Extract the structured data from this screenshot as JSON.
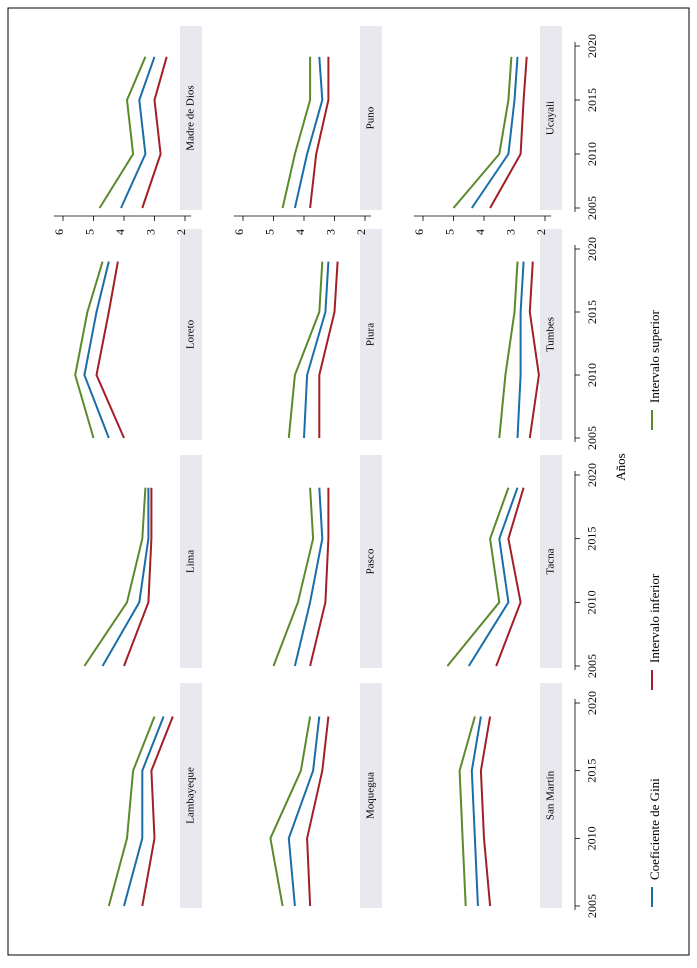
{
  "chart_data": {
    "type": "line",
    "xlabel": "Años",
    "ylabel": "",
    "xlim": [
      2004.6,
      2020
    ],
    "ylim": [
      2,
      6.5
    ],
    "xticks": [
      2005,
      2010,
      2015,
      2020
    ],
    "yticks": [
      2,
      3,
      4,
      5,
      6
    ],
    "x": [
      2005,
      2010,
      2015,
      2019
    ],
    "colors": {
      "Coeficiente de Gini": "#1a6ea8",
      "Intervalo inferior": "#a31f25",
      "Intervalo superior": "#5a8a2b"
    },
    "legend": {
      "position": "bottom",
      "entries": [
        "Coeficiente de Gini",
        "Intervalo inferior",
        "Intervalo superior"
      ]
    },
    "panels": [
      {
        "name": "Lambayeque",
        "series": [
          {
            "name": "Coeficiente de Gini",
            "values": [
              4.0,
              3.4,
              3.4,
              2.7
            ]
          },
          {
            "name": "Intervalo inferior",
            "values": [
              3.4,
              3.0,
              3.1,
              2.4
            ]
          },
          {
            "name": "Intervalo superior",
            "values": [
              4.5,
              3.9,
              3.7,
              3.0
            ]
          }
        ]
      },
      {
        "name": "Lima",
        "series": [
          {
            "name": "Coeficiente de Gini",
            "values": [
              4.7,
              3.5,
              3.2,
              3.2
            ]
          },
          {
            "name": "Intervalo inferior",
            "values": [
              4.0,
              3.2,
              3.1,
              3.1
            ]
          },
          {
            "name": "Intervalo superior",
            "values": [
              5.3,
              3.9,
              3.4,
              3.3
            ]
          }
        ]
      },
      {
        "name": "Loreto",
        "series": [
          {
            "name": "Coeficiente de Gini",
            "values": [
              4.5,
              5.3,
              4.9,
              4.5
            ]
          },
          {
            "name": "Intervalo inferior",
            "values": [
              4.0,
              4.9,
              4.5,
              4.2
            ]
          },
          {
            "name": "Intervalo superior",
            "values": [
              5.0,
              5.6,
              5.2,
              4.7
            ]
          }
        ]
      },
      {
        "name": "Madre de Dios",
        "series": [
          {
            "name": "Coeficiente de Gini",
            "values": [
              4.1,
              3.3,
              3.5,
              3.0
            ]
          },
          {
            "name": "Intervalo inferior",
            "values": [
              3.4,
              2.8,
              3.0,
              2.6
            ]
          },
          {
            "name": "Intervalo superior",
            "values": [
              4.8,
              3.7,
              3.9,
              3.3
            ]
          }
        ]
      },
      {
        "name": "Moquegua",
        "series": [
          {
            "name": "Coeficiente de Gini",
            "values": [
              4.3,
              4.5,
              3.7,
              3.5
            ]
          },
          {
            "name": "Intervalo inferior",
            "values": [
              3.8,
              3.9,
              3.4,
              3.2
            ]
          },
          {
            "name": "Intervalo superior",
            "values": [
              4.7,
              5.1,
              4.1,
              3.8
            ]
          }
        ]
      },
      {
        "name": "Pasco",
        "series": [
          {
            "name": "Coeficiente de Gini",
            "values": [
              4.3,
              3.8,
              3.4,
              3.5
            ]
          },
          {
            "name": "Intervalo inferior",
            "values": [
              3.8,
              3.3,
              3.2,
              3.2
            ]
          },
          {
            "name": "Intervalo superior",
            "values": [
              5.0,
              4.2,
              3.7,
              3.8
            ]
          }
        ]
      },
      {
        "name": "Piura",
        "series": [
          {
            "name": "Coeficiente de Gini",
            "values": [
              4.0,
              3.9,
              3.3,
              3.2
            ]
          },
          {
            "name": "Intervalo inferior",
            "values": [
              3.5,
              3.5,
              3.0,
              2.9
            ]
          },
          {
            "name": "Intervalo superior",
            "values": [
              4.5,
              4.3,
              3.5,
              3.4
            ]
          }
        ]
      },
      {
        "name": "Puno",
        "series": [
          {
            "name": "Coeficiente de Gini",
            "values": [
              4.3,
              3.9,
              3.4,
              3.5
            ]
          },
          {
            "name": "Intervalo inferior",
            "values": [
              3.8,
              3.6,
              3.2,
              3.2
            ]
          },
          {
            "name": "Intervalo superior",
            "values": [
              4.7,
              4.3,
              3.8,
              3.8
            ]
          }
        ]
      },
      {
        "name": "San Martín",
        "series": [
          {
            "name": "Coeficiente de Gini",
            "values": [
              4.2,
              4.3,
              4.4,
              4.1
            ]
          },
          {
            "name": "Intervalo inferior",
            "values": [
              3.8,
              4.0,
              4.1,
              3.8
            ]
          },
          {
            "name": "Intervalo superior",
            "values": [
              4.6,
              4.7,
              4.8,
              4.3
            ]
          }
        ]
      },
      {
        "name": "Tacna",
        "series": [
          {
            "name": "Coeficiente de Gini",
            "values": [
              4.5,
              3.2,
              3.5,
              2.9
            ]
          },
          {
            "name": "Intervalo inferior",
            "values": [
              3.6,
              2.8,
              3.2,
              2.7
            ]
          },
          {
            "name": "Intervalo superior",
            "values": [
              5.2,
              3.5,
              3.8,
              3.2
            ]
          }
        ]
      },
      {
        "name": "Tumbes",
        "series": [
          {
            "name": "Coeficiente de Gini",
            "values": [
              2.9,
              2.8,
              2.8,
              2.7
            ]
          },
          {
            "name": "Intervalo inferior",
            "values": [
              2.5,
              2.2,
              2.5,
              2.4
            ]
          },
          {
            "name": "Intervalo superior",
            "values": [
              3.5,
              3.3,
              3.0,
              2.9
            ]
          }
        ]
      },
      {
        "name": "Ucayali",
        "series": [
          {
            "name": "Coeficiente de Gini",
            "values": [
              4.4,
              3.2,
              3.0,
              2.9
            ]
          },
          {
            "name": "Intervalo inferior",
            "values": [
              3.8,
              2.8,
              2.7,
              2.6
            ]
          },
          {
            "name": "Intervalo superior",
            "values": [
              5.0,
              3.5,
              3.2,
              3.1
            ]
          }
        ]
      }
    ]
  }
}
